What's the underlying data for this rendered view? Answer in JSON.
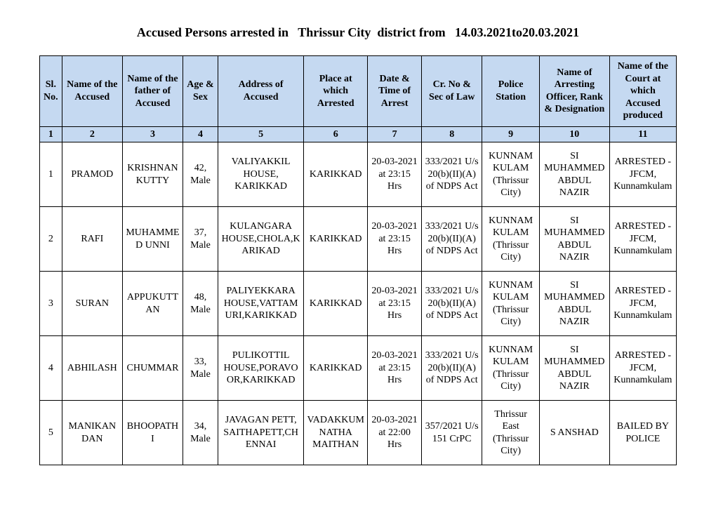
{
  "title": "Accused Persons arrested in   Thrissur City  district from   14.03.2021to20.03.2021",
  "headers": {
    "c1": "Sl. No.",
    "c2": "Name of the Accused",
    "c3": "Name of the father of Accused",
    "c4": "Age & Sex",
    "c5": "Address of Accused",
    "c6": "Place at which Arrested",
    "c7": "Date & Time of Arrest",
    "c8": "Cr. No & Sec of Law",
    "c9": "Police Station",
    "c10": "Name of Arresting Officer, Rank & Designation",
    "c11": "Name of the Court at which Accused produced"
  },
  "colnums": {
    "c1": "1",
    "c2": "2",
    "c3": "3",
    "c4": "4",
    "c5": "5",
    "c6": "6",
    "c7": "7",
    "c8": "8",
    "c9": "9",
    "c10": "10",
    "c11": "11"
  },
  "rows": [
    {
      "sl": "1",
      "name": "PRAMOD",
      "father": "KRISHNAN KUTTY",
      "age": "42, Male",
      "addr": "VALIYAKKIL HOUSE, KARIKKAD",
      "place": "KARIKKAD",
      "date": "20-03-2021 at 23:15 Hrs",
      "law": "333/2021 U/s 20(b)(II)(A) of NDPS Act",
      "station": "KUNNAMKULAM (Thrissur City)",
      "officer": "SI MUHAMMED ABDUL NAZIR",
      "court": "ARRESTED - JFCM, Kunnamkulam"
    },
    {
      "sl": "2",
      "name": "RAFI",
      "father": "MUHAMMED UNNI",
      "age": "37, Male",
      "addr": "KULANGARA HOUSE,CHOLA,KARIKAD",
      "place": "KARIKKAD",
      "date": "20-03-2021 at 23:15 Hrs",
      "law": "333/2021 U/s 20(b)(II)(A) of NDPS Act",
      "station": "KUNNAMKULAM (Thrissur City)",
      "officer": "SI MUHAMMED ABDUL NAZIR",
      "court": "ARRESTED - JFCM, Kunnamkulam"
    },
    {
      "sl": "3",
      "name": "SURAN",
      "father": "APPUKUTTAN",
      "age": "48, Male",
      "addr": "PALIYEKKARA HOUSE,VATTAMURI,KARIKKAD",
      "place": "KARIKKAD",
      "date": "20-03-2021 at 23:15 Hrs",
      "law": "333/2021 U/s 20(b)(II)(A) of NDPS Act",
      "station": "KUNNAMKULAM (Thrissur City)",
      "officer": "SI MUHAMMED ABDUL NAZIR",
      "court": "ARRESTED - JFCM, Kunnamkulam"
    },
    {
      "sl": "4",
      "name": "ABHILASH",
      "father": "CHUMMAR",
      "age": "33, Male",
      "addr": "PULIKOTTIL HOUSE,PORAVOOR,KARIKKAD",
      "place": "KARIKKAD",
      "date": "20-03-2021 at 23:15 Hrs",
      "law": "333/2021 U/s 20(b)(II)(A) of NDPS Act",
      "station": "KUNNAMKULAM (Thrissur City)",
      "officer": "SI MUHAMMED ABDUL NAZIR",
      "court": "ARRESTED - JFCM, Kunnamkulam"
    },
    {
      "sl": "5",
      "name": "MANIKANDAN",
      "father": "BHOOPATHI",
      "age": "34, Male",
      "addr": "JAVAGAN PETT, SAITHAPETT,CHENNAI",
      "place": "VADAKKUMNATHA MAITHAN",
      "date": "20-03-2021 at 22:00 Hrs",
      "law": "357/2021 U/s 151 CrPC",
      "station": "Thrissur East (Thrissur City)",
      "officer": "S ANSHAD",
      "court": "BAILED BY POLICE"
    }
  ],
  "style": {
    "header_bg": "#c5d9f1",
    "border_color": "#000000",
    "font_family": "Times New Roman",
    "title_fontsize": 18,
    "cell_fontsize": 14
  }
}
